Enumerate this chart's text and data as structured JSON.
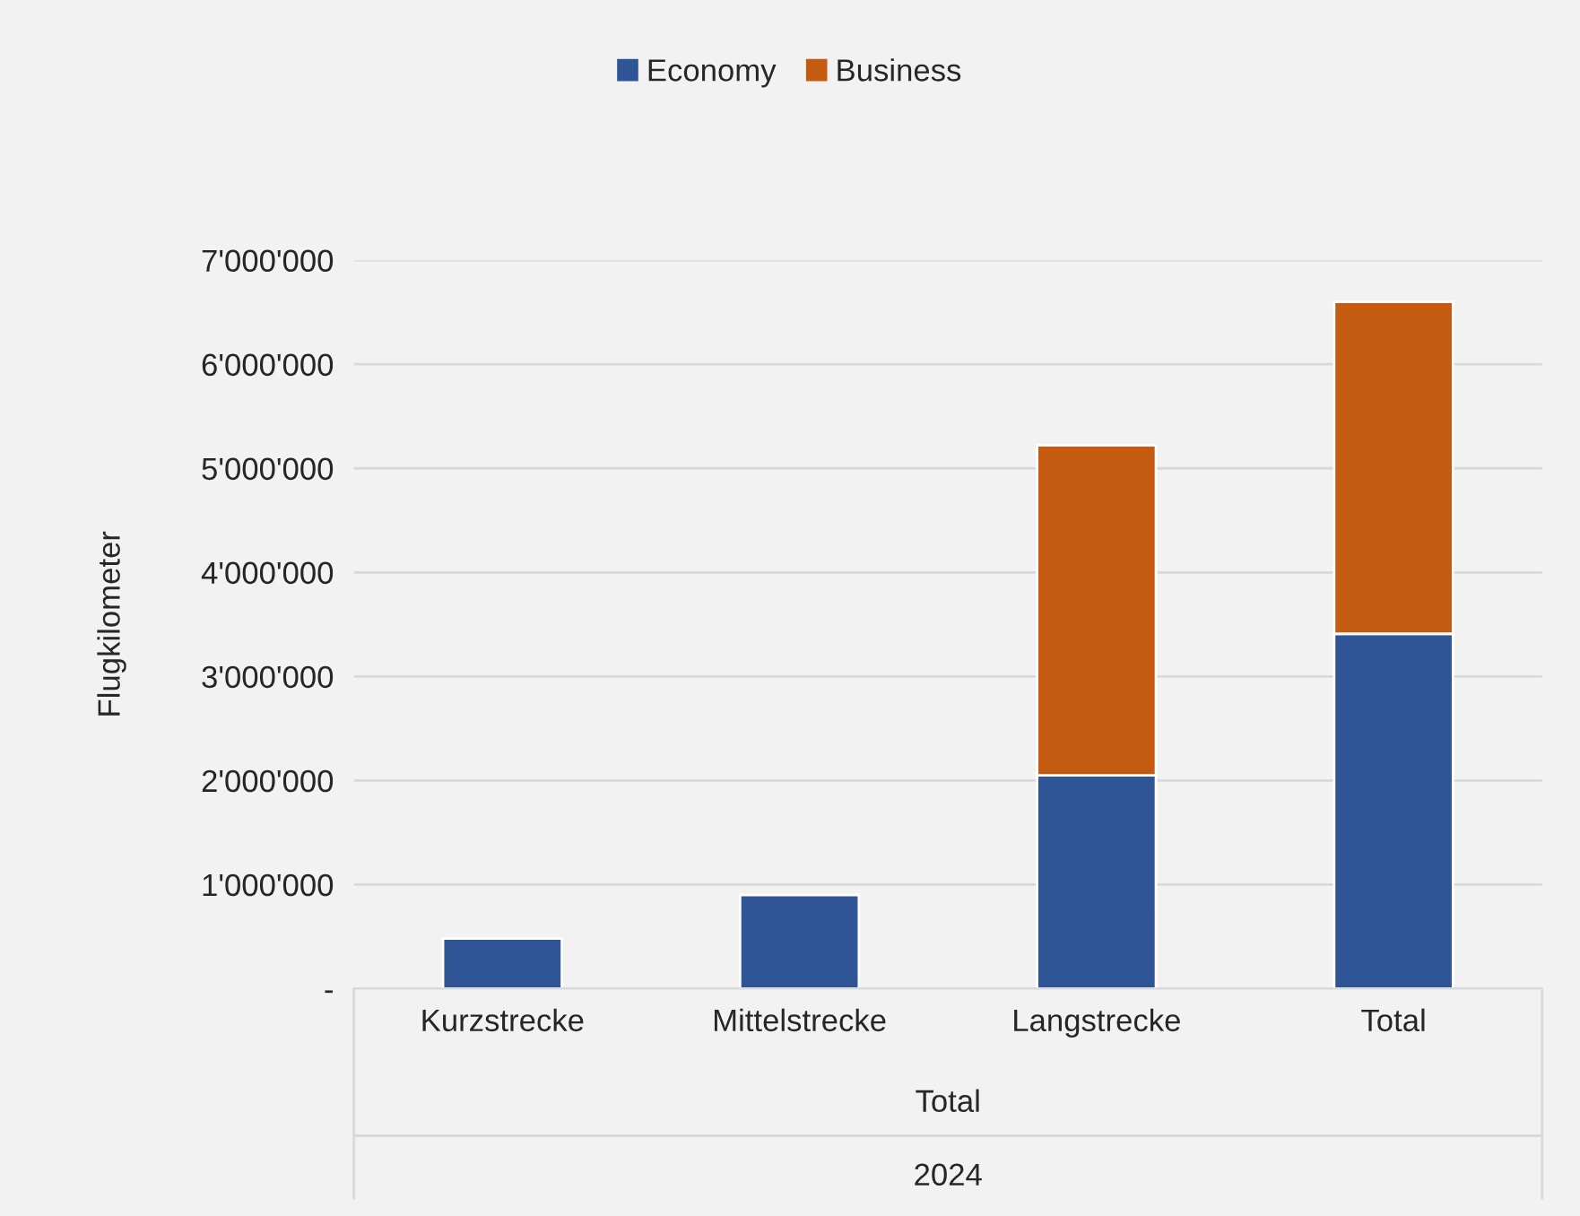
{
  "chart_data": {
    "type": "bar",
    "stacked": true,
    "categories": [
      "Kurzstrecke",
      "Mittelstrecke",
      "Langstrecke",
      "Total"
    ],
    "series": [
      {
        "name": "Economy",
        "color": "#2f5597",
        "values": [
          480000,
          900000,
          2050000,
          3410000
        ]
      },
      {
        "name": "Business",
        "color": "#c55a11",
        "values": [
          null,
          null,
          3170000,
          3190000
        ]
      }
    ],
    "xlabel": "Total",
    "ylabel": "Flugkilometer",
    "annotations": [
      "2024"
    ],
    "ylim": [
      0,
      7000000
    ],
    "yticks": [
      {
        "value": 0,
        "label": "-"
      },
      {
        "value": 1000000,
        "label": "1'000'000"
      },
      {
        "value": 2000000,
        "label": "2'000'000"
      },
      {
        "value": 3000000,
        "label": "3'000'000"
      },
      {
        "value": 4000000,
        "label": "4'000'000"
      },
      {
        "value": 5000000,
        "label": "5'000'000"
      },
      {
        "value": 6000000,
        "label": "6'000'000"
      },
      {
        "value": 7000000,
        "label": "7'000'000"
      }
    ],
    "grid": "y",
    "legend": "top"
  }
}
